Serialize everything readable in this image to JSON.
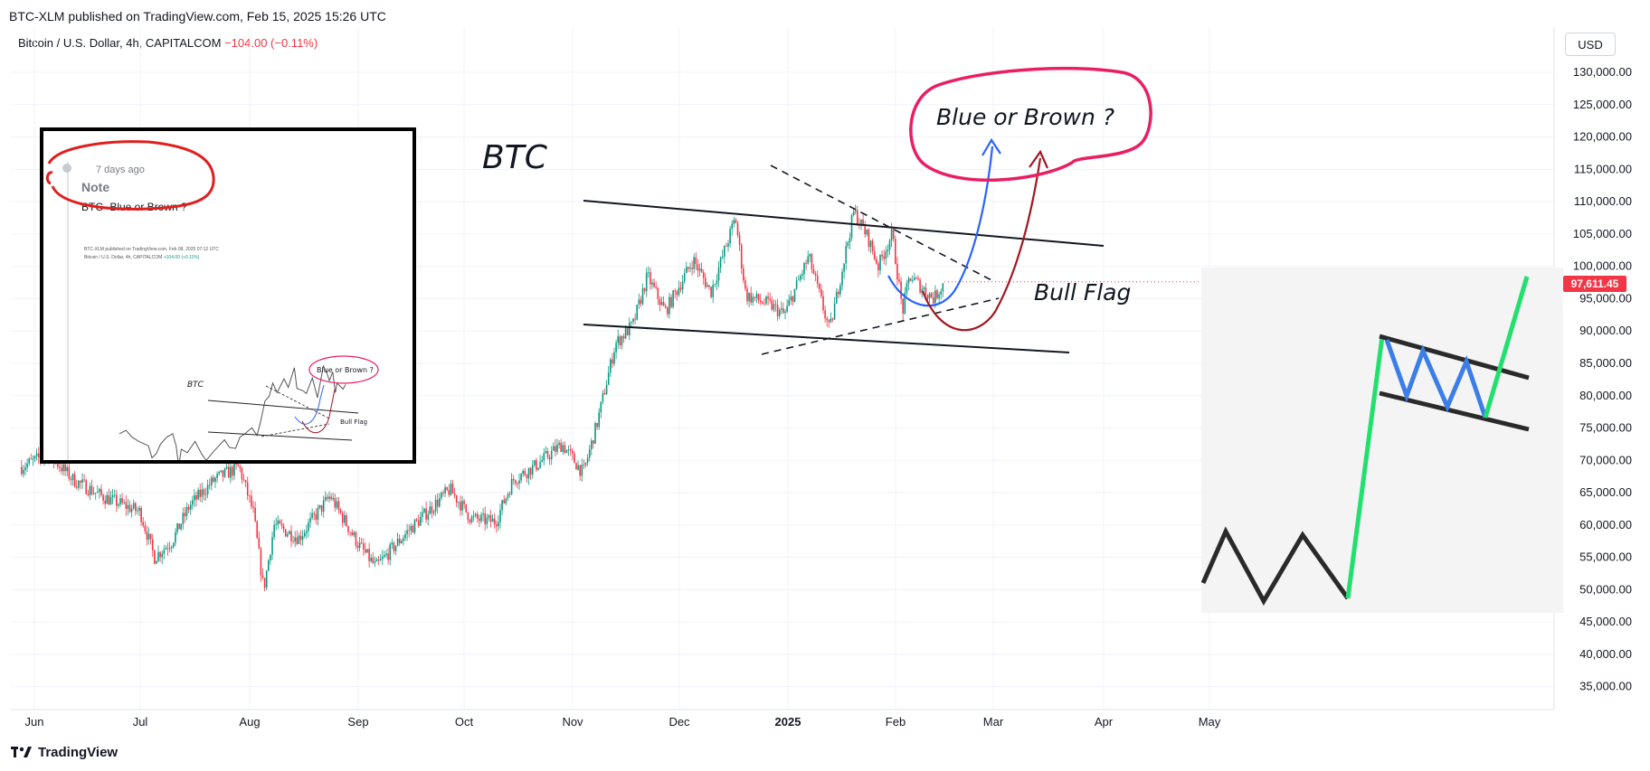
{
  "header": {
    "attribution": "BTC-XLM published on TradingView.com, Feb 15, 2025 15:26 UTC",
    "symbol_name": "Bitcoin / U.S. Dollar, 4h, CAPITALCOM",
    "change": "−104.00 (−0.11%)",
    "currency": "USD"
  },
  "footer": {
    "logo_text": "TradingView"
  },
  "colors": {
    "up": "#089981",
    "down": "#f23645",
    "price_label_bg": "#f23645",
    "blue_path": "#2962ff",
    "brown_path": "#a31621",
    "highlight": "#e91e63",
    "bull_green": "#22e06e"
  },
  "annotations": {
    "btc": "BTC",
    "question": "Blue or Brown ?",
    "bull_flag": "Bull Flag"
  },
  "inset": {
    "note_time": "7 days ago",
    "note_title": "Note",
    "note_text": "BTC- Blue or Brown ?",
    "mini_attribution": "BTC-XLM published on TradingView.com, Feb 08, 2025 07:12 UTC",
    "mini_symbol": "Bitcoin / U.S. Dollar, 4h, CAPITALCOM",
    "mini_change": "+104.00 (+0.11%)",
    "mini_btc": "BTC",
    "mini_question": "Blue or Brown ?",
    "mini_bull_flag": "Bull Flag"
  },
  "chart_data": {
    "type": "candlestick",
    "title": "Bitcoin / U.S. Dollar, 4h, CAPITALCOM",
    "timeframe": "4h",
    "ylabel": "USD",
    "ylim": [
      30000,
      135000
    ],
    "yticks": [
      35000,
      40000,
      45000,
      50000,
      55000,
      60000,
      65000,
      70000,
      75000,
      80000,
      85000,
      90000,
      95000,
      100000,
      105000,
      110000,
      115000,
      120000,
      125000,
      130000
    ],
    "ytick_labels": [
      "35,000.00",
      "40,000.00",
      "45,000.00",
      "50,000.00",
      "55,000.00",
      "60,000.00",
      "65,000.00",
      "70,000.00",
      "75,000.00",
      "80,000.00",
      "85,000.00",
      "90,000.00",
      "95,000.00",
      "100,000.00",
      "105,000.00",
      "110,000.00",
      "115,000.00",
      "120,000.00",
      "125,000.00",
      "130,000.00"
    ],
    "xticks": [
      "Jun",
      "Jul",
      "Aug",
      "Sep",
      "Oct",
      "Nov",
      "Dec",
      "2025",
      "Feb",
      "Mar",
      "Apr",
      "May"
    ],
    "last_price_label": "97,611.45",
    "last_price": 97611.45,
    "grid": true,
    "price_path": [
      {
        "date": "2024-05-27",
        "close": 69000
      },
      {
        "date": "2024-06-05",
        "close": 71000
      },
      {
        "date": "2024-06-12",
        "close": 67000
      },
      {
        "date": "2024-06-20",
        "close": 64500
      },
      {
        "date": "2024-07-01",
        "close": 62000
      },
      {
        "date": "2024-07-05",
        "close": 55000
      },
      {
        "date": "2024-07-10",
        "close": 57500
      },
      {
        "date": "2024-07-15",
        "close": 63000
      },
      {
        "date": "2024-07-22",
        "close": 67000
      },
      {
        "date": "2024-07-29",
        "close": 69000
      },
      {
        "date": "2024-08-02",
        "close": 62000
      },
      {
        "date": "2024-08-05",
        "close": 50000
      },
      {
        "date": "2024-08-08",
        "close": 60000
      },
      {
        "date": "2024-08-15",
        "close": 58000
      },
      {
        "date": "2024-08-24",
        "close": 64500
      },
      {
        "date": "2024-09-01",
        "close": 57000
      },
      {
        "date": "2024-09-06",
        "close": 53500
      },
      {
        "date": "2024-09-15",
        "close": 59000
      },
      {
        "date": "2024-09-27",
        "close": 65500
      },
      {
        "date": "2024-10-03",
        "close": 61000
      },
      {
        "date": "2024-10-10",
        "close": 60500
      },
      {
        "date": "2024-10-15",
        "close": 67000
      },
      {
        "date": "2024-10-21",
        "close": 69000
      },
      {
        "date": "2024-10-29",
        "close": 72500
      },
      {
        "date": "2024-11-04",
        "close": 68000
      },
      {
        "date": "2024-11-08",
        "close": 76000
      },
      {
        "date": "2024-11-13",
        "close": 88000
      },
      {
        "date": "2024-11-18",
        "close": 91000
      },
      {
        "date": "2024-11-22",
        "close": 98500
      },
      {
        "date": "2024-11-27",
        "close": 93000
      },
      {
        "date": "2024-12-05",
        "close": 101000
      },
      {
        "date": "2024-12-10",
        "close": 96000
      },
      {
        "date": "2024-12-17",
        "close": 107500
      },
      {
        "date": "2024-12-20",
        "close": 95500
      },
      {
        "date": "2024-12-27",
        "close": 94000
      },
      {
        "date": "2024-12-31",
        "close": 92500
      },
      {
        "date": "2025-01-07",
        "close": 101500
      },
      {
        "date": "2025-01-13",
        "close": 90000
      },
      {
        "date": "2025-01-20",
        "close": 108500
      },
      {
        "date": "2025-01-24",
        "close": 104500
      },
      {
        "date": "2025-01-27",
        "close": 100000
      },
      {
        "date": "2025-01-31",
        "close": 105000
      },
      {
        "date": "2025-02-03",
        "close": 93000
      },
      {
        "date": "2025-02-05",
        "close": 98500
      },
      {
        "date": "2025-02-09",
        "close": 96500
      },
      {
        "date": "2025-02-12",
        "close": 95000
      },
      {
        "date": "2025-02-15",
        "close": 97611
      }
    ]
  }
}
